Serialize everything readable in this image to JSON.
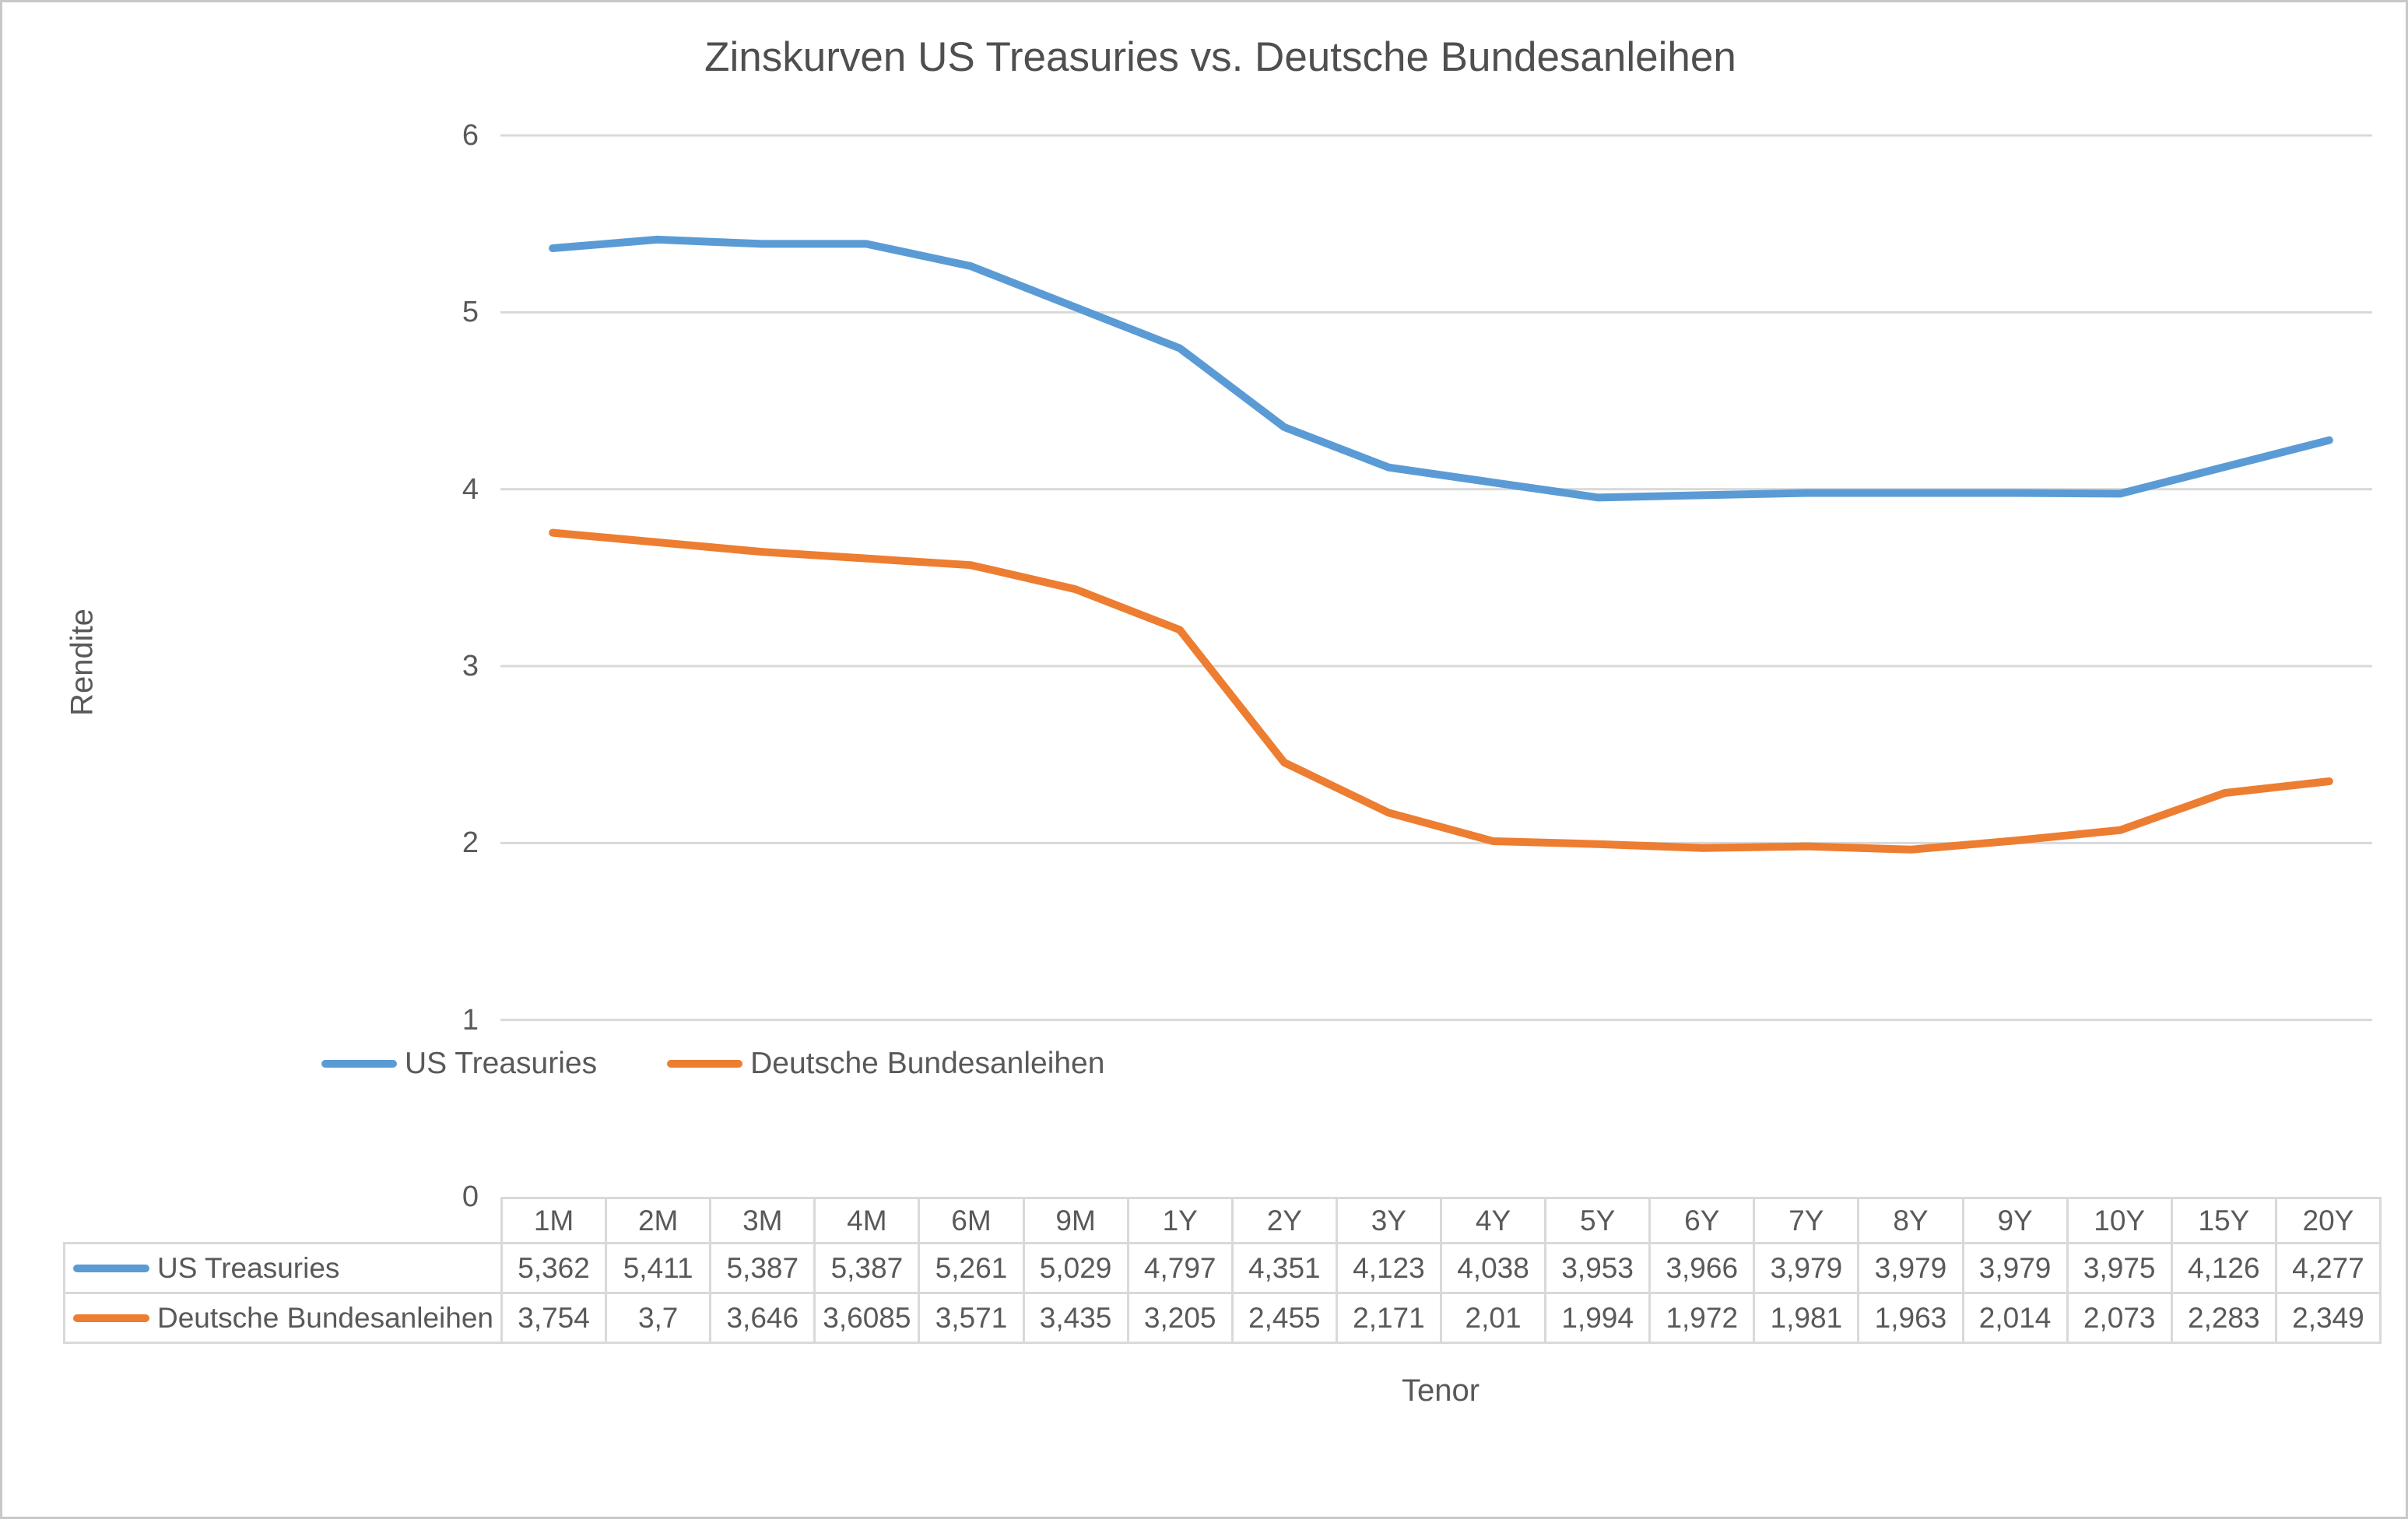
{
  "chart_data": {
    "type": "line",
    "title": "Zinskurven US Treasuries vs. Deutsche Bundesanleihen",
    "xlabel": "Tenor",
    "ylabel": "Rendite",
    "ylim": [
      0,
      6
    ],
    "yticks": [
      6,
      5,
      4,
      3,
      2,
      1,
      0
    ],
    "grid": true,
    "legend_position": "inside-bottom-left",
    "categories": [
      "1M",
      "2M",
      "3M",
      "4M",
      "6M",
      "9M",
      "1Y",
      "2Y",
      "3Y",
      "4Y",
      "5Y",
      "6Y",
      "7Y",
      "8Y",
      "9Y",
      "10Y",
      "15Y",
      "20Y"
    ],
    "series": [
      {
        "name": "US Treasuries",
        "color": "#5B9BD5",
        "values": [
          5.362,
          5.411,
          5.387,
          5.387,
          5.261,
          5.029,
          4.797,
          4.351,
          4.123,
          4.038,
          3.953,
          3.966,
          3.979,
          3.979,
          3.979,
          3.975,
          4.126,
          4.277
        ],
        "display": [
          "5,362",
          "5,411",
          "5,387",
          "5,387",
          "5,261",
          "5,029",
          "4,797",
          "4,351",
          "4,123",
          "4,038",
          "3,953",
          "3,966",
          "3,979",
          "3,979",
          "3,979",
          "3,975",
          "4,126",
          "4,277"
        ]
      },
      {
        "name": "Deutsche Bundesanleihen",
        "color": "#ED7D31",
        "values": [
          3.754,
          3.7,
          3.646,
          3.6085,
          3.571,
          3.435,
          3.205,
          2.455,
          2.171,
          2.01,
          1.994,
          1.972,
          1.981,
          1.963,
          2.014,
          2.073,
          2.283,
          2.349
        ],
        "display": [
          "3,754",
          "3,7",
          "3,646",
          "3,6085",
          "3,571",
          "3,435",
          "3,205",
          "2,455",
          "2,171",
          "2,01",
          "1,994",
          "1,972",
          "1,981",
          "1,963",
          "2,014",
          "2,073",
          "2,283",
          "2,349"
        ]
      }
    ]
  },
  "colors": {
    "gridline": "#d9d9d9",
    "table_border": "#d9d9d9",
    "text": "#595959",
    "title_text": "#4f4f4f",
    "page_border": "#c8c8c8"
  }
}
